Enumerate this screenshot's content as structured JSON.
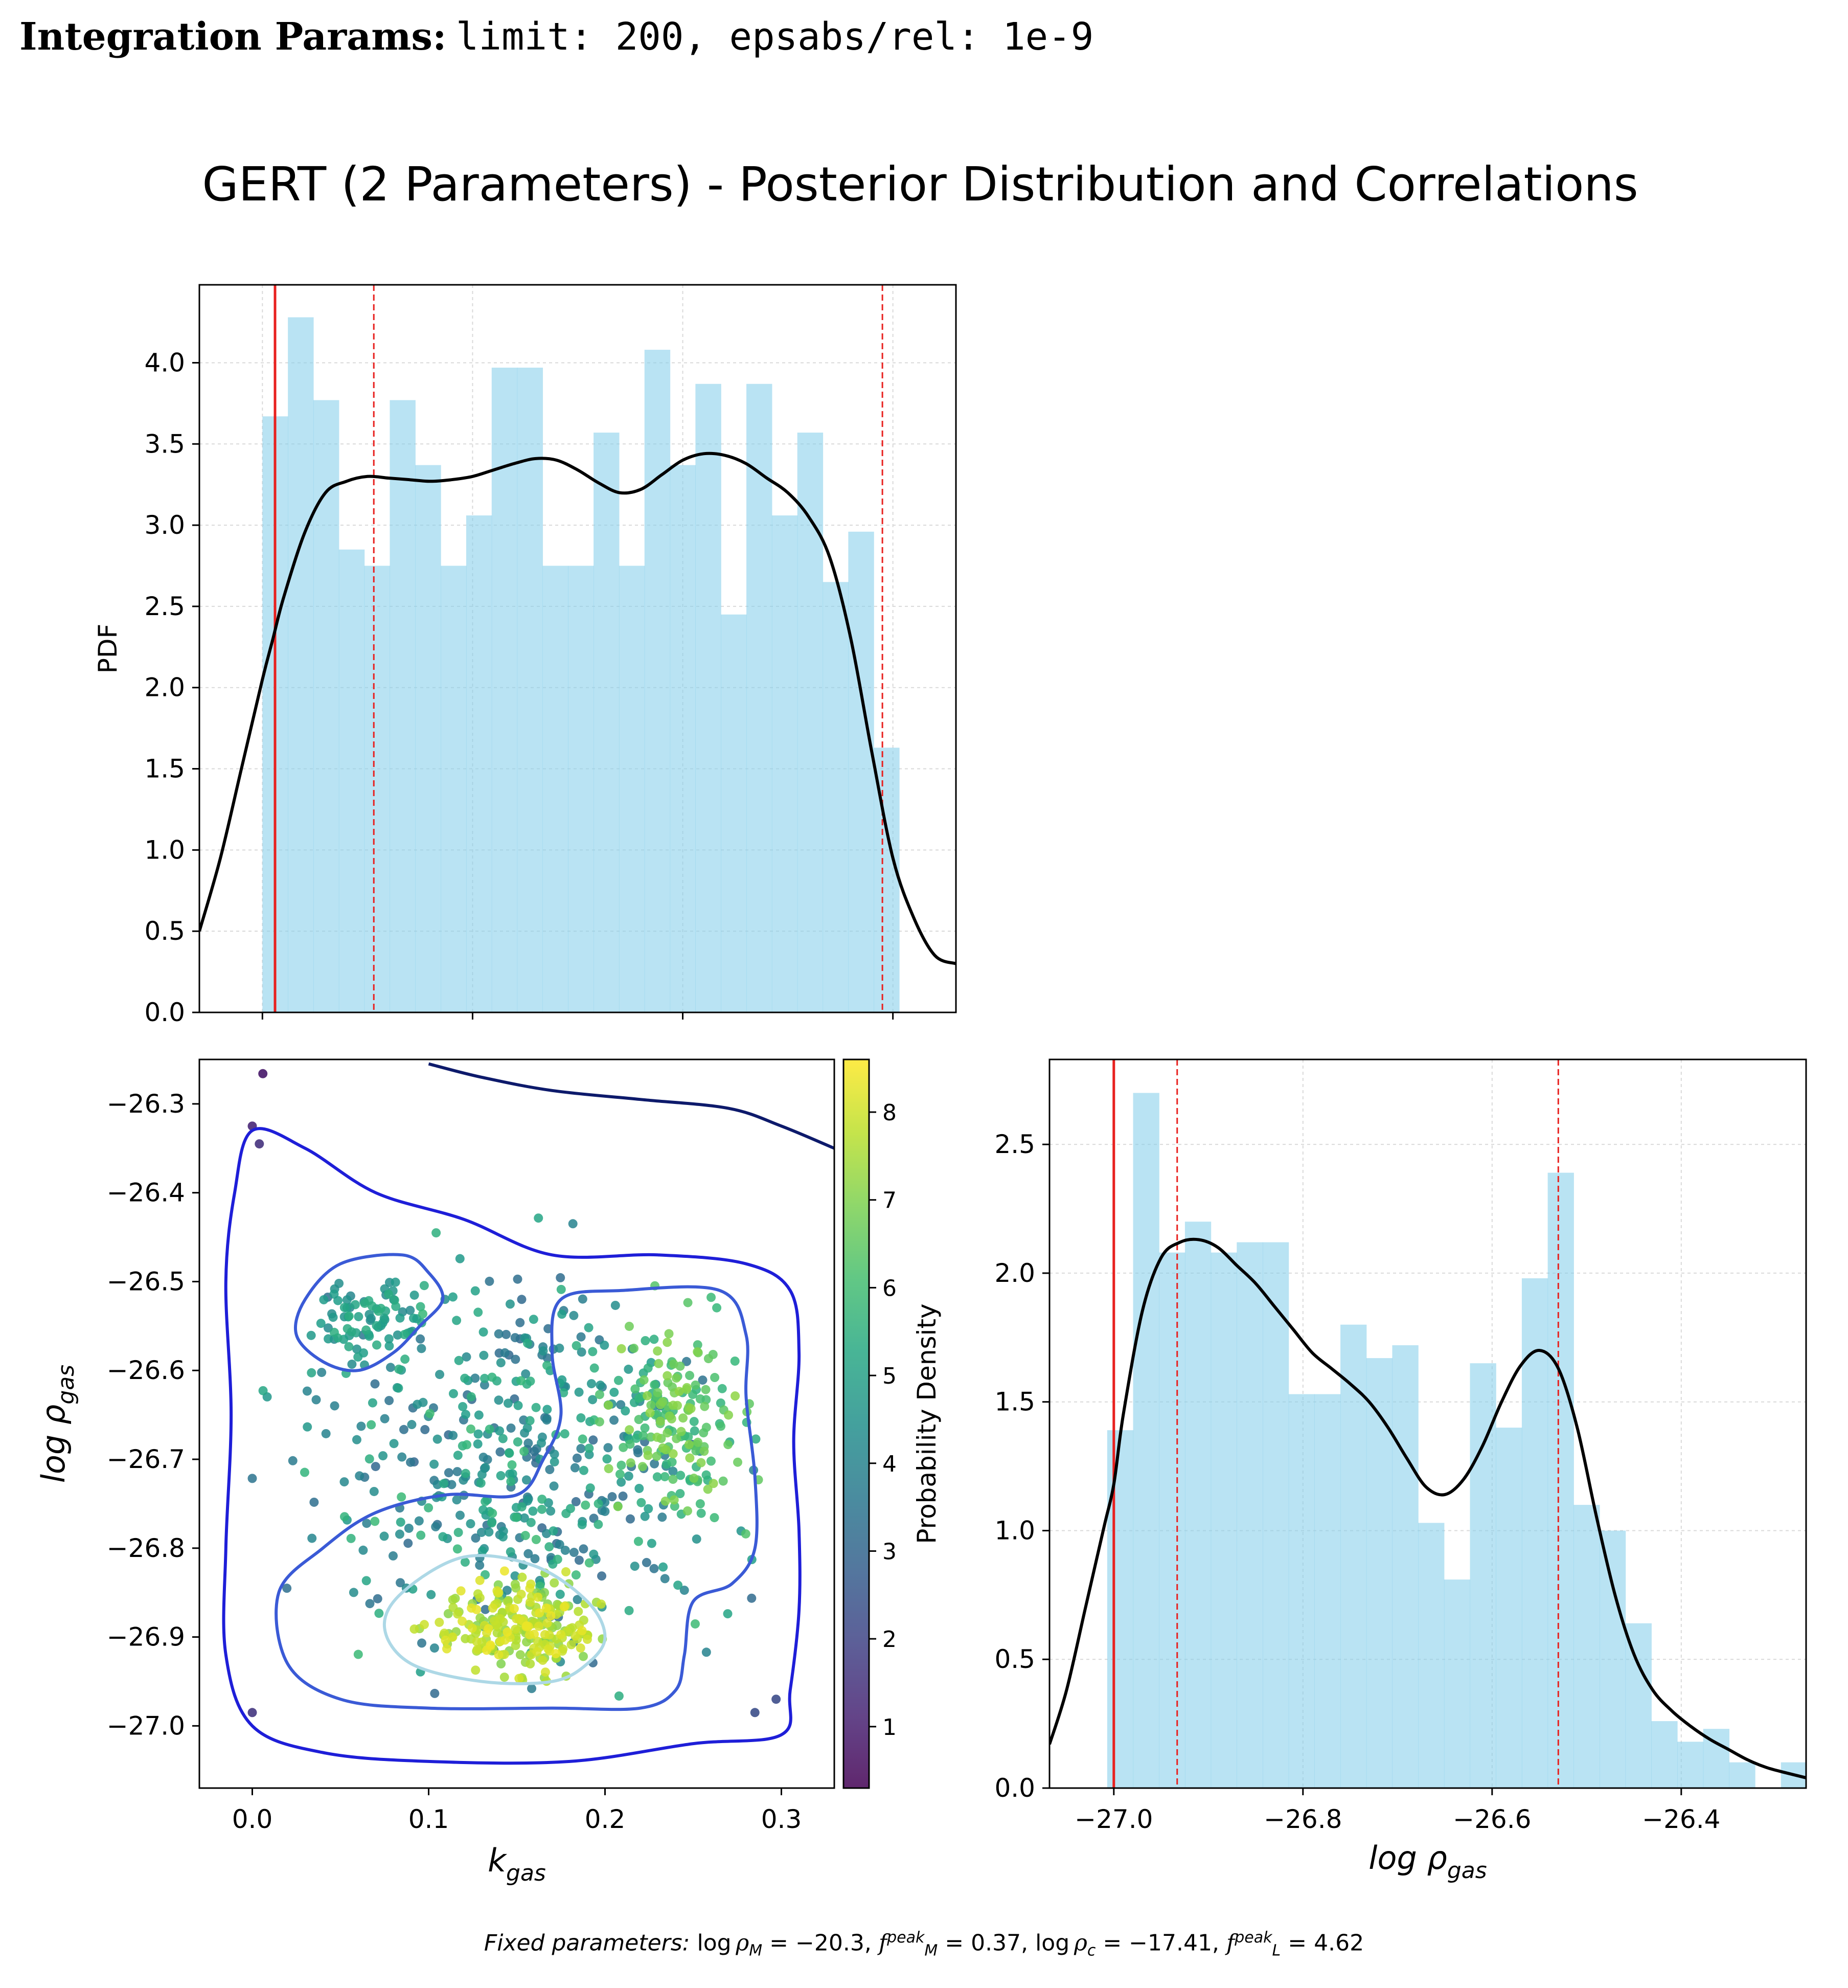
{
  "header": {
    "label": "Integration Params:",
    "code": "limit:  200, epsabs/rel:  1e-9"
  },
  "figure_title": "GERT (2 Parameters) - Posterior Distribution and Correlations",
  "footer": {
    "lead": "Fixed parameters: ",
    "p1_value": "= −20.3, ",
    "p2_value": "= 0.37, ",
    "p3_value": "= −17.41, ",
    "p4_value": "= 4.62",
    "log": "log",
    "rho": "ρ",
    "sub_M": "M",
    "sub_c": "c",
    "sub_L": "L",
    "f": "f",
    "peak": "peak"
  },
  "chart_data": [
    {
      "type": "bar",
      "panel": "k_gas marginal histogram with KDE",
      "ylabel": "PDF",
      "xlim": [
        -0.03,
        0.33
      ],
      "ylim": [
        0,
        4.48
      ],
      "yticks": [
        "0.0",
        "0.5",
        "1.0",
        "1.5",
        "2.0",
        "2.5",
        "3.0",
        "3.5",
        "4.0"
      ],
      "bin_edges": [
        0.0,
        0.01212,
        0.02424,
        0.03636,
        0.04848,
        0.0606,
        0.07272,
        0.08484,
        0.09696,
        0.10908,
        0.1212,
        0.13332,
        0.14544,
        0.15756,
        0.16968,
        0.1818,
        0.19392,
        0.20604,
        0.21816,
        0.23028,
        0.2424,
        0.25452,
        0.26664,
        0.27876,
        0.29088,
        0.303
      ],
      "values": [
        3.67,
        4.28,
        3.77,
        2.85,
        2.75,
        3.77,
        3.37,
        2.75,
        3.06,
        3.97,
        3.97,
        2.75,
        2.75,
        3.57,
        2.75,
        4.08,
        3.37,
        3.87,
        2.45,
        3.87,
        3.06,
        3.57,
        2.65,
        2.96,
        1.63
      ],
      "kde": {
        "x": [
          -0.03,
          -0.02,
          -0.01,
          0.0,
          0.005,
          0.01,
          0.02,
          0.03,
          0.04,
          0.05,
          0.06,
          0.07,
          0.08,
          0.09,
          0.1,
          0.11,
          0.12,
          0.13,
          0.14,
          0.15,
          0.16,
          0.17,
          0.18,
          0.19,
          0.2,
          0.21,
          0.22,
          0.23,
          0.24,
          0.25,
          0.26,
          0.27,
          0.28,
          0.29,
          0.3,
          0.31,
          0.32,
          0.33
        ],
        "y": [
          0.5,
          0.95,
          1.5,
          2.05,
          2.3,
          2.55,
          2.95,
          3.2,
          3.27,
          3.3,
          3.29,
          3.28,
          3.27,
          3.28,
          3.3,
          3.34,
          3.38,
          3.41,
          3.4,
          3.34,
          3.26,
          3.2,
          3.22,
          3.31,
          3.4,
          3.44,
          3.43,
          3.38,
          3.29,
          3.2,
          3.05,
          2.8,
          2.3,
          1.6,
          0.95,
          0.58,
          0.35,
          0.3
        ]
      },
      "vlines": {
        "solid": [
          0.006
        ],
        "dashed": [
          0.053,
          0.295
        ]
      }
    },
    {
      "type": "scatter",
      "panel": "joint posterior",
      "xlabel": "k_gas",
      "ylabel": "log ρ_gas",
      "xlim": [
        -0.03,
        0.33
      ],
      "ylim": [
        -27.07,
        -26.25
      ],
      "xticks": [
        "0.0",
        "0.1",
        "0.2",
        "0.3"
      ],
      "yticks": [
        "−26.3",
        "−26.4",
        "−26.5",
        "−26.6",
        "−26.7",
        "−26.8",
        "−26.9",
        "−27.0"
      ],
      "colorbar": {
        "label": "Probability Density",
        "range": [
          0.3,
          8.6
        ],
        "ticks": [
          "1",
          "2",
          "3",
          "4",
          "5",
          "6",
          "7",
          "8"
        ]
      },
      "clusters": [
        {
          "kx": 0.15,
          "ly": -26.89,
          "sx": 0.035,
          "sy": 0.045,
          "n": 220,
          "d": [
            7.0,
            8.4
          ]
        },
        {
          "kx": 0.24,
          "ly": -26.65,
          "sx": 0.03,
          "sy": 0.09,
          "n": 170,
          "d": [
            5.5,
            7.2
          ]
        },
        {
          "kx": 0.07,
          "ly": -26.54,
          "sx": 0.03,
          "sy": 0.04,
          "n": 80,
          "d": [
            4.0,
            5.5
          ]
        },
        {
          "kx": 0.15,
          "ly": -26.7,
          "sx": 0.09,
          "sy": 0.17,
          "n": 450,
          "d": [
            3.0,
            6.0
          ]
        }
      ],
      "outliers": [
        {
          "x": 0.006,
          "y": -26.266,
          "d": 0.8
        },
        {
          "x": 0.0,
          "y": -26.325,
          "d": 1.2
        },
        {
          "x": 0.004,
          "y": -26.345,
          "d": 1.5
        },
        {
          "x": 0.0,
          "y": -26.985,
          "d": 1.6
        },
        {
          "x": 0.297,
          "y": -26.97,
          "d": 2.2
        },
        {
          "x": 0.285,
          "y": -26.985,
          "d": 2.3
        }
      ],
      "contours": [
        {
          "color": "#1e1ed8",
          "level": "outer",
          "points": [
            [
              0.0,
              -26.33
            ],
            [
              0.03,
              -26.35
            ],
            [
              0.07,
              -26.4
            ],
            [
              0.12,
              -26.43
            ],
            [
              0.17,
              -26.47
            ],
            [
              0.23,
              -26.47
            ],
            [
              0.28,
              -26.48
            ],
            [
              0.305,
              -26.51
            ],
            [
              0.31,
              -26.58
            ],
            [
              0.307,
              -26.68
            ],
            [
              0.31,
              -26.78
            ],
            [
              0.31,
              -26.87
            ],
            [
              0.305,
              -26.96
            ],
            [
              0.3,
              -27.01
            ],
            [
              0.25,
              -27.02
            ],
            [
              0.18,
              -27.04
            ],
            [
              0.1,
              -27.04
            ],
            [
              0.04,
              -27.03
            ],
            [
              0.0,
              -27.0
            ],
            [
              -0.015,
              -26.92
            ],
            [
              -0.015,
              -26.8
            ],
            [
              -0.012,
              -26.65
            ],
            [
              -0.015,
              -26.5
            ],
            [
              -0.01,
              -26.4
            ],
            [
              0.0,
              -26.33
            ]
          ]
        },
        {
          "color": "#3a5ad6",
          "level": "mid-left",
          "points": [
            [
              0.03,
              -26.52
            ],
            [
              0.05,
              -26.48
            ],
            [
              0.085,
              -26.47
            ],
            [
              0.1,
              -26.49
            ],
            [
              0.108,
              -26.52
            ],
            [
              0.095,
              -26.55
            ],
            [
              0.08,
              -26.58
            ],
            [
              0.06,
              -26.6
            ],
            [
              0.04,
              -26.59
            ],
            [
              0.025,
              -26.56
            ],
            [
              0.03,
              -26.52
            ]
          ]
        },
        {
          "color": "#3a5ad6",
          "level": "mid-main",
          "points": [
            [
              0.175,
              -26.52
            ],
            [
              0.21,
              -26.51
            ],
            [
              0.265,
              -26.51
            ],
            [
              0.28,
              -26.56
            ],
            [
              0.28,
              -26.63
            ],
            [
              0.285,
              -26.72
            ],
            [
              0.285,
              -26.8
            ],
            [
              0.272,
              -26.84
            ],
            [
              0.25,
              -26.86
            ],
            [
              0.245,
              -26.92
            ],
            [
              0.24,
              -26.96
            ],
            [
              0.22,
              -26.98
            ],
            [
              0.17,
              -26.98
            ],
            [
              0.1,
              -26.98
            ],
            [
              0.05,
              -26.97
            ],
            [
              0.02,
              -26.93
            ],
            [
              0.015,
              -26.85
            ],
            [
              0.04,
              -26.8
            ],
            [
              0.07,
              -26.76
            ],
            [
              0.11,
              -26.74
            ],
            [
              0.15,
              -26.74
            ],
            [
              0.165,
              -26.7
            ],
            [
              0.175,
              -26.65
            ],
            [
              0.17,
              -26.58
            ],
            [
              0.175,
              -26.52
            ]
          ]
        },
        {
          "color": "#add8e6",
          "level": "inner",
          "points": [
            [
              0.085,
              -26.85
            ],
            [
              0.12,
              -26.81
            ],
            [
              0.16,
              -26.82
            ],
            [
              0.19,
              -26.86
            ],
            [
              0.2,
              -26.9
            ],
            [
              0.19,
              -26.93
            ],
            [
              0.17,
              -26.95
            ],
            [
              0.13,
              -26.95
            ],
            [
              0.09,
              -26.93
            ],
            [
              0.075,
              -26.89
            ],
            [
              0.085,
              -26.85
            ]
          ]
        },
        {
          "color": "#0d1a6b",
          "level": "top-arc",
          "points": [
            [
              0.1,
              -26.255
            ],
            [
              0.13,
              -26.27
            ],
            [
              0.17,
              -26.285
            ],
            [
              0.22,
              -26.295
            ],
            [
              0.27,
              -26.305
            ],
            [
              0.3,
              -26.325
            ],
            [
              0.33,
              -26.35
            ]
          ]
        }
      ]
    },
    {
      "type": "bar",
      "panel": "log rho_gas marginal histogram with KDE",
      "xlabel": "log ρ_gas",
      "xlim": [
        -27.068,
        -26.268
      ],
      "ylim": [
        0,
        2.83
      ],
      "xticks": [
        "−27.0",
        "−26.8",
        "−26.6",
        "−26.4"
      ],
      "yticks": [
        "0.0",
        "0.5",
        "1.0",
        "1.5",
        "2.0",
        "2.5"
      ],
      "bin_edges": [
        -27.007,
        -26.9796,
        -26.9522,
        -26.9248,
        -26.8974,
        -26.87,
        -26.8426,
        -26.8152,
        -26.7878,
        -26.7604,
        -26.733,
        -26.7056,
        -26.6782,
        -26.6508,
        -26.6234,
        -26.596,
        -26.5686,
        -26.5412,
        -26.5138,
        -26.4864,
        -26.459,
        -26.4316,
        -26.4042,
        -26.3768,
        -26.3494,
        -26.322,
        -26.2946,
        -26.2672
      ],
      "values": [
        1.39,
        2.7,
        2.08,
        2.2,
        2.08,
        2.12,
        2.12,
        1.53,
        1.53,
        1.8,
        1.67,
        1.72,
        1.03,
        0.81,
        1.65,
        1.4,
        1.98,
        2.39,
        1.1,
        1.0,
        0.64,
        0.26,
        0.18,
        0.23,
        0.1,
        0.0,
        0.1
      ],
      "kde": {
        "x": [
          -27.068,
          -27.05,
          -27.03,
          -27.01,
          -27.0,
          -26.99,
          -26.97,
          -26.95,
          -26.93,
          -26.91,
          -26.89,
          -26.87,
          -26.85,
          -26.83,
          -26.81,
          -26.79,
          -26.77,
          -26.75,
          -26.73,
          -26.71,
          -26.69,
          -26.67,
          -26.65,
          -26.63,
          -26.61,
          -26.59,
          -26.57,
          -26.55,
          -26.53,
          -26.51,
          -26.49,
          -26.47,
          -26.45,
          -26.43,
          -26.41,
          -26.39,
          -26.37,
          -26.35,
          -26.33,
          -26.31,
          -26.29,
          -26.268
        ],
        "y": [
          0.17,
          0.38,
          0.7,
          1.02,
          1.18,
          1.45,
          1.85,
          2.06,
          2.12,
          2.13,
          2.1,
          2.03,
          1.96,
          1.87,
          1.78,
          1.69,
          1.63,
          1.57,
          1.5,
          1.4,
          1.28,
          1.17,
          1.14,
          1.2,
          1.33,
          1.5,
          1.64,
          1.7,
          1.63,
          1.4,
          1.06,
          0.75,
          0.52,
          0.38,
          0.3,
          0.24,
          0.19,
          0.15,
          0.11,
          0.08,
          0.06,
          0.04
        ]
      },
      "vlines": {
        "solid": [
          -27.0
        ],
        "dashed": [
          -26.933,
          -26.53
        ]
      }
    }
  ],
  "style": {
    "hist_color": "#87ceeb",
    "kde_color": "#000000",
    "vline_color": "#e8211f",
    "grid_color": "#d9d9d9"
  }
}
